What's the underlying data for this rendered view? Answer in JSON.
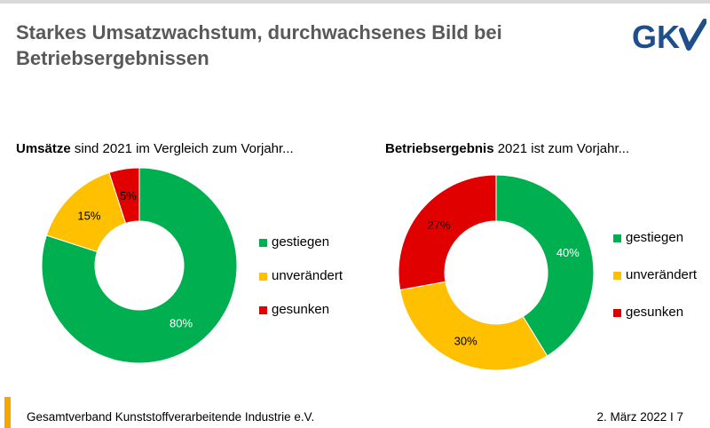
{
  "title": "Starkes Umsatzwachstum, durchwachsenes Bild bei Betriebsergebnissen",
  "logo": {
    "text": "GKV",
    "color": "#1f4e8c"
  },
  "colors": {
    "gestiegen": "#00b050",
    "unverändert": "#ffc000",
    "gesunken": "#e00000"
  },
  "chart_data": [
    {
      "type": "pie",
      "variant": "donut",
      "title_bold": "Umsätze",
      "title_rest": " sind 2021 im Vergleich zum Vorjahr...",
      "categories": [
        "gestiegen",
        "unverändert",
        "gesunken"
      ],
      "values": [
        80,
        15,
        5
      ],
      "labels": [
        "80%",
        "15%",
        "5%"
      ],
      "legend": "right"
    },
    {
      "type": "pie",
      "variant": "donut",
      "title_bold": "Betriebsergebnis",
      "title_rest": " 2021 ist zum Vorjahr...",
      "categories": [
        "gestiegen",
        "unverändert",
        "gesunken"
      ],
      "values": [
        40,
        30,
        27
      ],
      "labels": [
        "40%",
        "30%",
        "27%"
      ],
      "legend": "right"
    }
  ],
  "footer": {
    "organization": "Gesamtverband Kunststoffverarbeitende Industrie e.V.",
    "date_page": "2. März 2022 I 7"
  }
}
